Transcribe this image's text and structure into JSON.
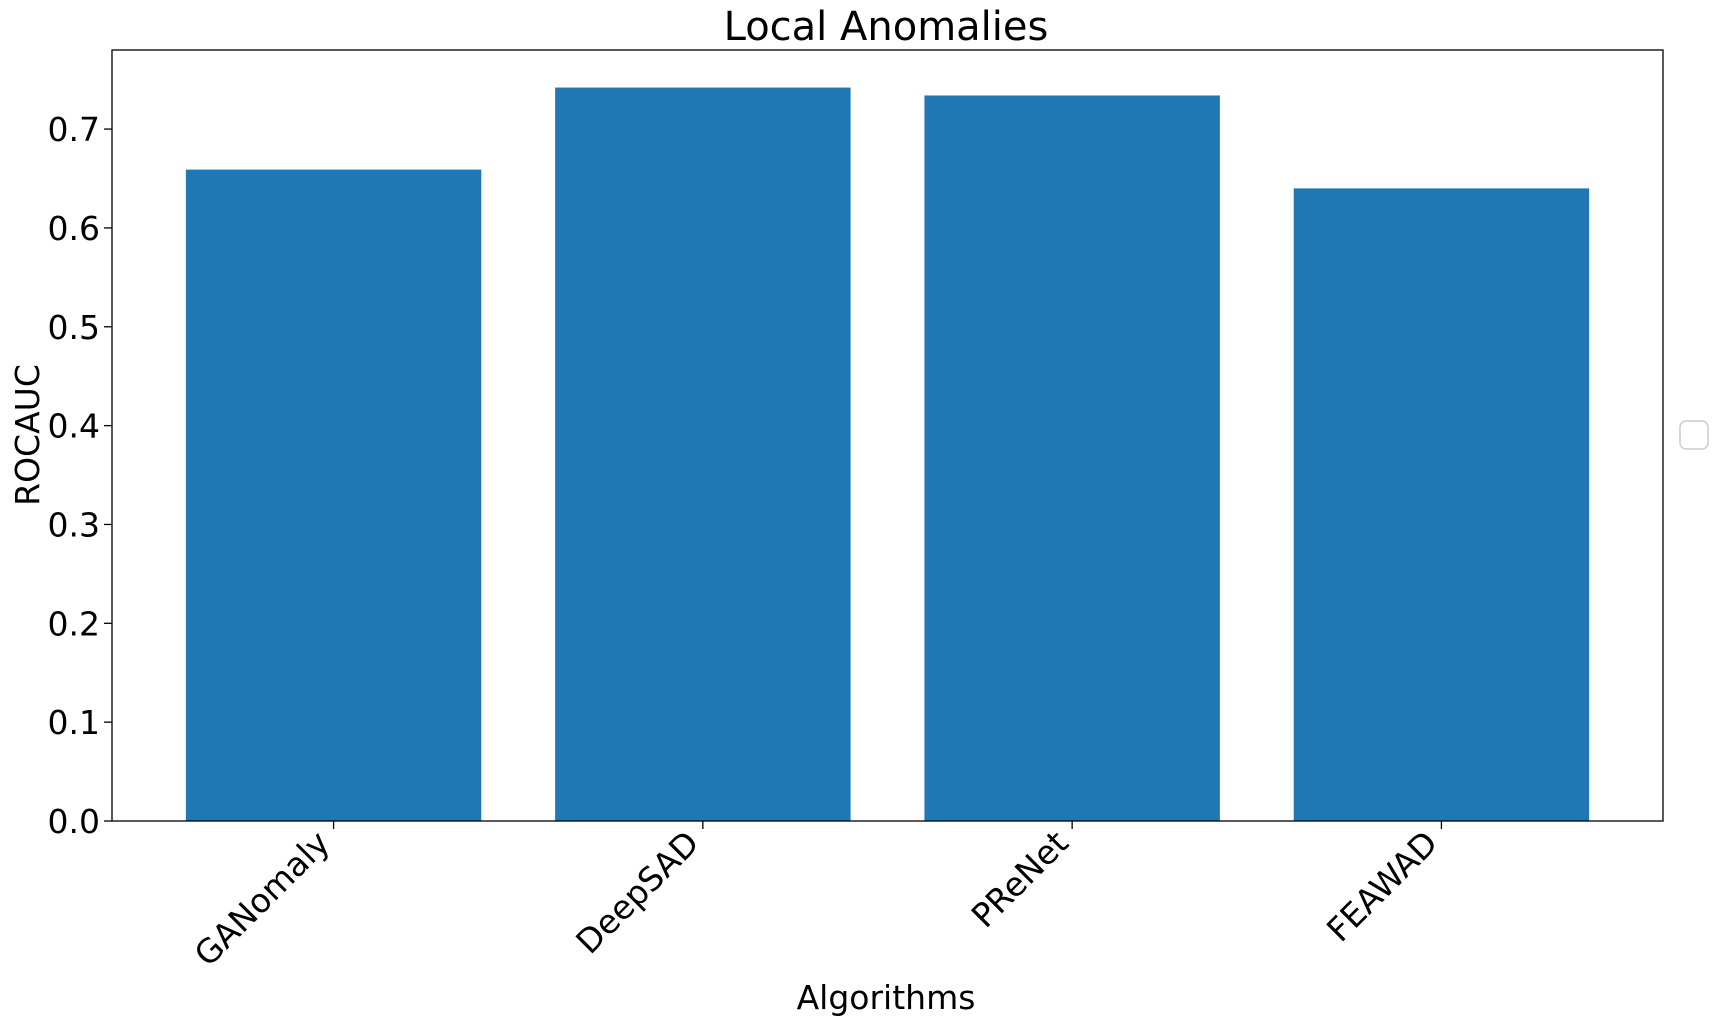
{
  "chart_data": {
    "type": "bar",
    "title": "Local Anomalies",
    "xlabel": "Algorithms",
    "ylabel": "ROCAUC",
    "categories": [
      "GANomaly",
      "DeepSAD",
      "PReNet",
      "FEAWAD"
    ],
    "values": [
      0.659,
      0.742,
      0.734,
      0.64
    ],
    "ylim": [
      0,
      0.78
    ],
    "yticks": [
      "0.0",
      "0.1",
      "0.2",
      "0.3",
      "0.4",
      "0.5",
      "0.6",
      "0.7"
    ],
    "grid": false,
    "legend": "right, empty",
    "bar_color": "#1f77b4"
  }
}
